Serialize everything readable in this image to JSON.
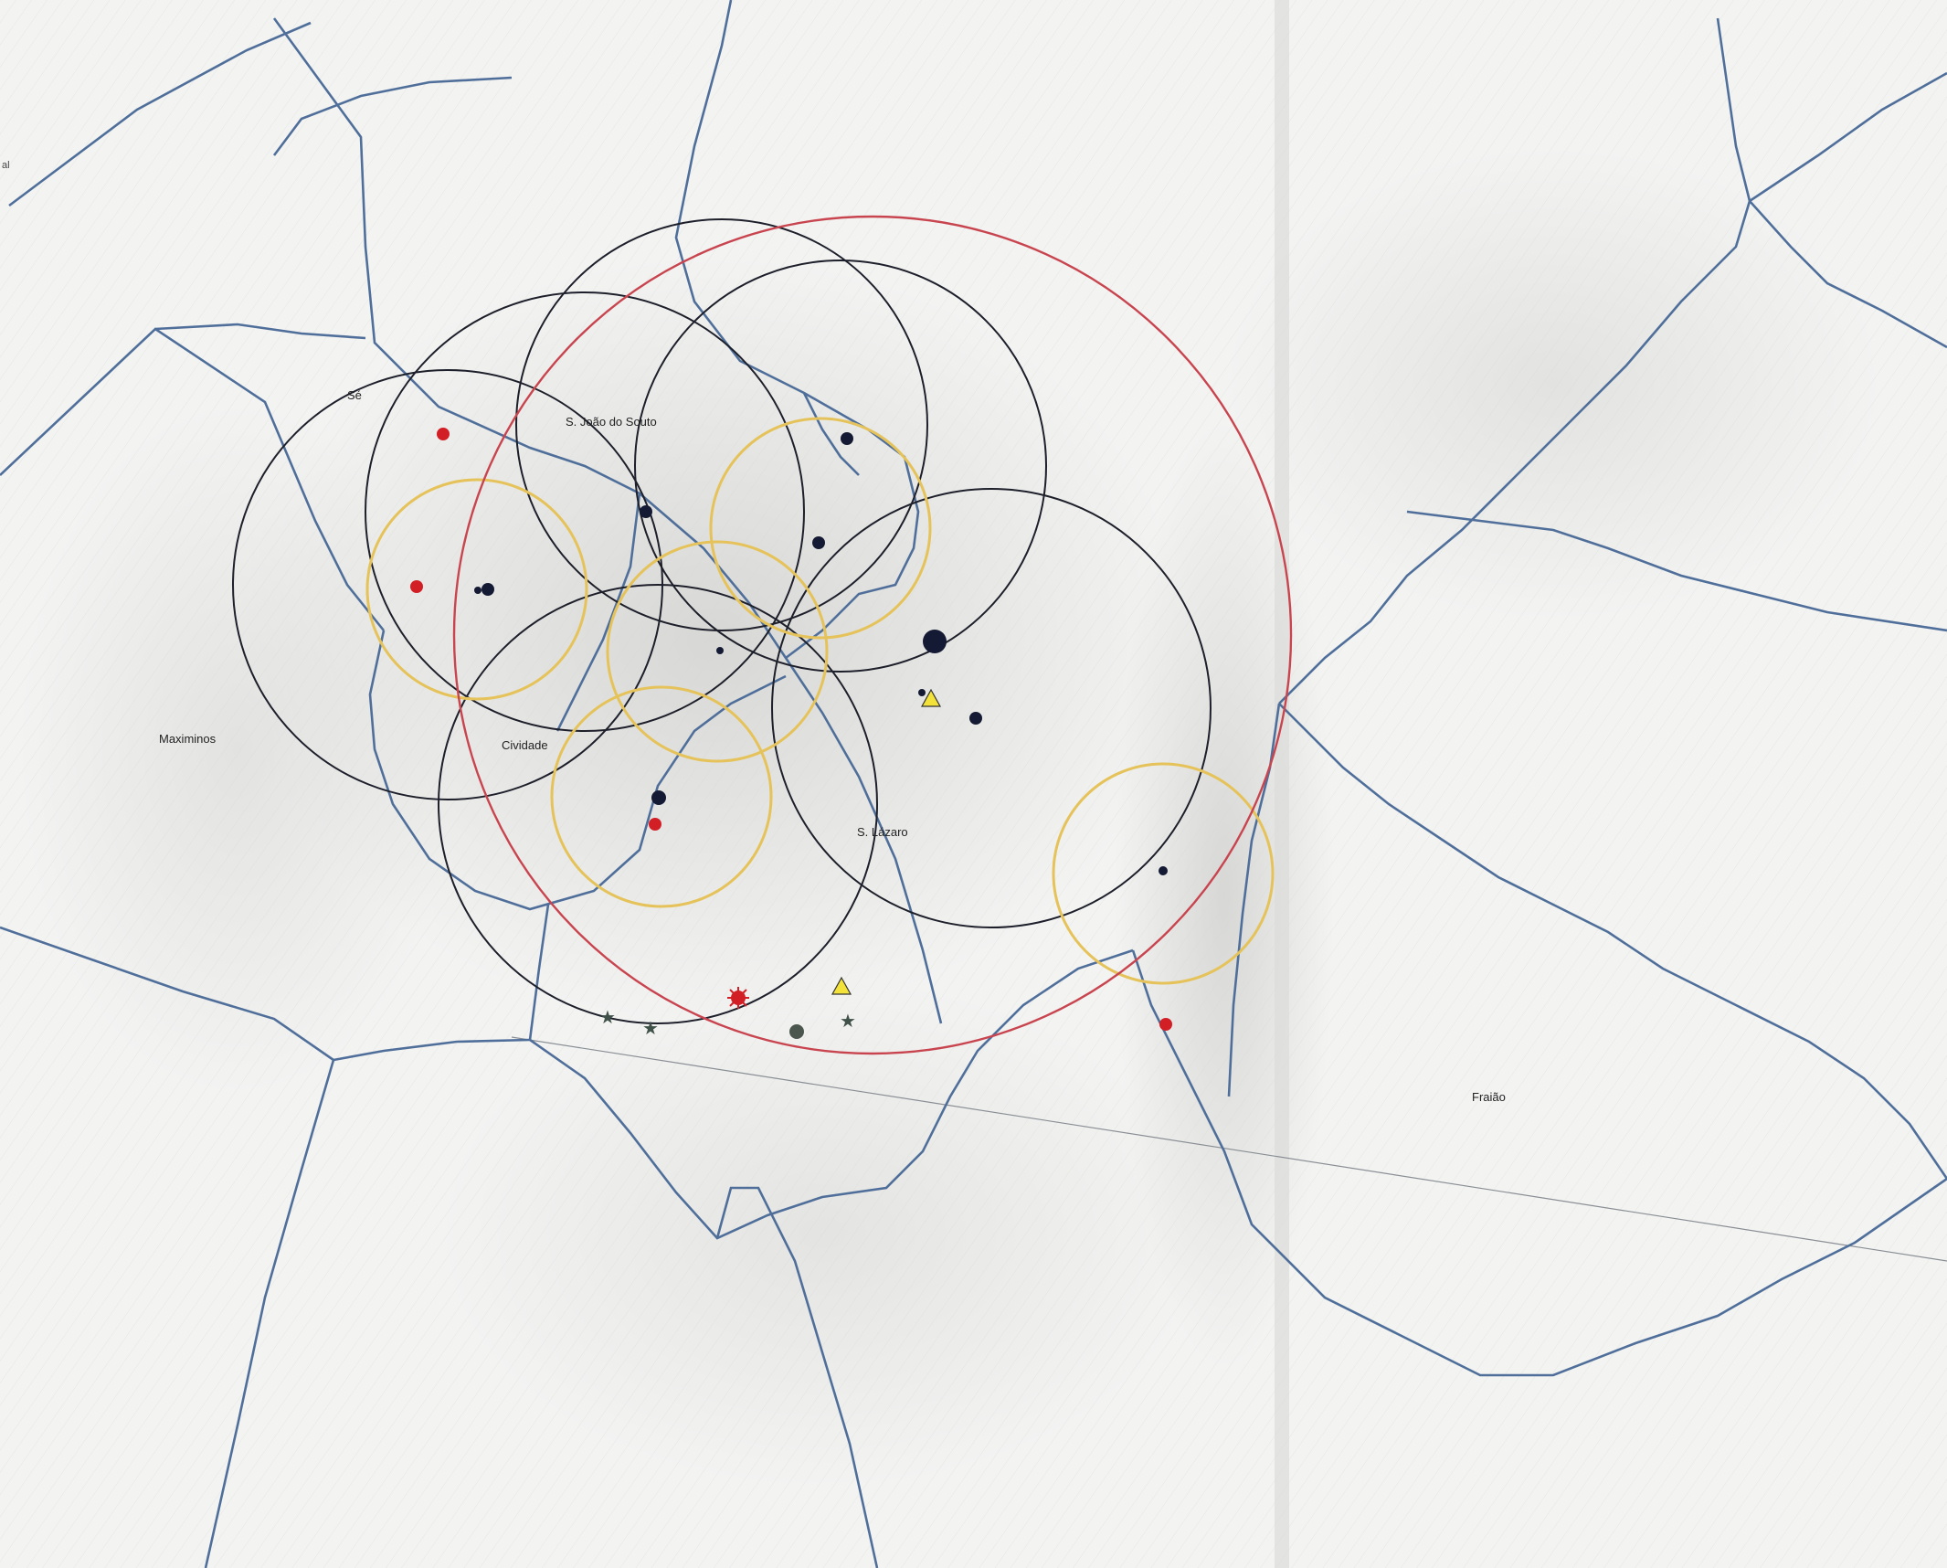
{
  "map": {
    "place_labels": [
      {
        "id": "se",
        "text": "Sé"
      },
      {
        "id": "sjs",
        "text": "S. João do Souto"
      },
      {
        "id": "maximinos",
        "text": "Maximinos"
      },
      {
        "id": "cividade",
        "text": "Cividade"
      },
      {
        "id": "slazaro",
        "text": "S. Lázaro"
      },
      {
        "id": "fraiao",
        "text": "Fraião"
      }
    ],
    "edge_text": {
      "left": "al"
    },
    "colors": {
      "background": "#f3f3f2",
      "texture_light": "#e2e2e0",
      "texture_dark": "#cfcfcd",
      "parish_boundary": "#4f6f9a",
      "black_circle": "#1d1f2a",
      "yellow_circle": "#e5c35a",
      "red_circle": "#c8454f",
      "red_marker": "#d21f26",
      "navy_marker": "#141a33",
      "triangle_fill": "#f3e23a",
      "star_marker": "#3f5148",
      "gray_dot": "#4a564e"
    },
    "marker_types": [
      "red-dot",
      "red-starburst",
      "navy-dot",
      "yellow-triangle",
      "dark-star",
      "gray-dot"
    ]
  }
}
